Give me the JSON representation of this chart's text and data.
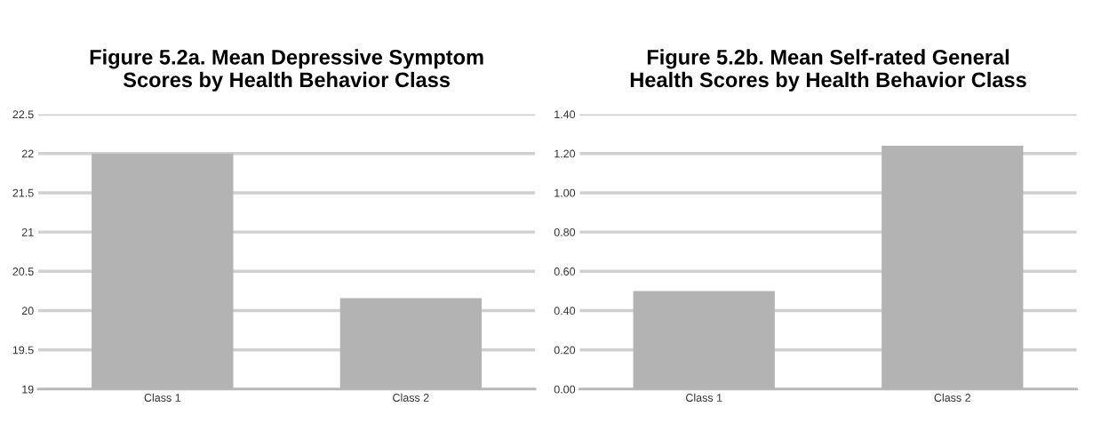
{
  "chart_data": [
    {
      "type": "bar",
      "title": "Figure 5.2a. Mean Depressive Symptom\nScores by Health Behavior Class",
      "categories": [
        "Class 1",
        "Class 2"
      ],
      "values": [
        22.0,
        20.16
      ],
      "color": "#b3b3b3",
      "ylim": [
        19,
        22.5
      ],
      "yticks": [
        19,
        19.5,
        20,
        20.5,
        21,
        21.5,
        22,
        22.5
      ],
      "grid": "y"
    },
    {
      "type": "bar",
      "title": "Figure 5.2b. Mean Self-rated General\nHealth Scores by Health Behavior Class",
      "categories": [
        "Class 1",
        "Class 2"
      ],
      "values": [
        0.5,
        1.24
      ],
      "color": "#b3b3b3",
      "ylim": [
        0,
        1.4
      ],
      "yticks": [
        {
          "value": 0,
          "label": "0.00"
        },
        {
          "value": 0.2,
          "label": "0.20"
        },
        {
          "value": 0.4,
          "label": "0.40"
        },
        {
          "value": 0.6,
          "label": "0.60"
        },
        {
          "value": 0.8,
          "label": "0.80"
        },
        {
          "value": 1.0,
          "label": "1.00"
        },
        {
          "value": 1.2,
          "label": "1.20"
        },
        {
          "value": 1.4,
          "label": "1.40"
        }
      ],
      "grid": "y"
    }
  ]
}
